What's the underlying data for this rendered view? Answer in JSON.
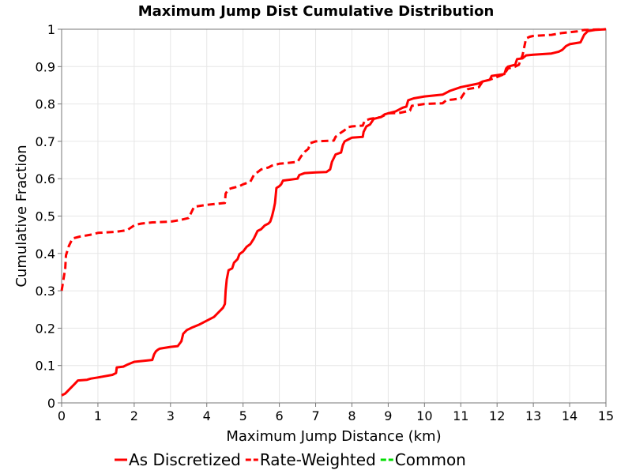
{
  "chart_data": {
    "type": "line",
    "title": "Maximum Jump Dist Cumulative Distribution",
    "xlabel": "Maximum Jump Distance (km)",
    "ylabel": "Cumulative Fraction",
    "xlim": [
      0,
      15
    ],
    "ylim": [
      0,
      1
    ],
    "x_ticks": [
      "0",
      "1",
      "2",
      "3",
      "4",
      "5",
      "6",
      "7",
      "8",
      "9",
      "10",
      "11",
      "12",
      "13",
      "14",
      "15"
    ],
    "y_ticks": [
      "0",
      "0.1",
      "0.2",
      "0.3",
      "0.4",
      "0.5",
      "0.6",
      "0.7",
      "0.8",
      "0.9",
      "1"
    ],
    "grid": true,
    "legend_position": "bottom",
    "series": [
      {
        "name": "As Discretized",
        "color": "#ff0000",
        "dash": "solid",
        "points": [
          [
            0,
            0.02
          ],
          [
            0.1,
            0.025
          ],
          [
            0.2,
            0.035
          ],
          [
            0.35,
            0.05
          ],
          [
            0.45,
            0.06
          ],
          [
            0.7,
            0.062
          ],
          [
            0.8,
            0.065
          ],
          [
            1.0,
            0.068
          ],
          [
            1.4,
            0.075
          ],
          [
            1.5,
            0.08
          ],
          [
            1.52,
            0.095
          ],
          [
            1.7,
            0.097
          ],
          [
            1.8,
            0.102
          ],
          [
            2.0,
            0.11
          ],
          [
            2.5,
            0.115
          ],
          [
            2.55,
            0.13
          ],
          [
            2.6,
            0.138
          ],
          [
            2.65,
            0.142
          ],
          [
            2.7,
            0.145
          ],
          [
            3.0,
            0.15
          ],
          [
            3.2,
            0.152
          ],
          [
            3.3,
            0.165
          ],
          [
            3.35,
            0.185
          ],
          [
            3.45,
            0.195
          ],
          [
            3.6,
            0.202
          ],
          [
            3.8,
            0.21
          ],
          [
            4.0,
            0.22
          ],
          [
            4.2,
            0.23
          ],
          [
            4.3,
            0.24
          ],
          [
            4.4,
            0.25
          ],
          [
            4.45,
            0.255
          ],
          [
            4.5,
            0.265
          ],
          [
            4.52,
            0.3
          ],
          [
            4.55,
            0.33
          ],
          [
            4.6,
            0.355
          ],
          [
            4.7,
            0.36
          ],
          [
            4.75,
            0.375
          ],
          [
            4.85,
            0.385
          ],
          [
            4.9,
            0.398
          ],
          [
            5.0,
            0.405
          ],
          [
            5.1,
            0.418
          ],
          [
            5.2,
            0.425
          ],
          [
            5.3,
            0.44
          ],
          [
            5.4,
            0.46
          ],
          [
            5.5,
            0.465
          ],
          [
            5.6,
            0.475
          ],
          [
            5.7,
            0.48
          ],
          [
            5.75,
            0.485
          ],
          [
            5.8,
            0.5
          ],
          [
            5.85,
            0.52
          ],
          [
            5.88,
            0.535
          ],
          [
            5.92,
            0.575
          ],
          [
            6.0,
            0.58
          ],
          [
            6.05,
            0.585
          ],
          [
            6.1,
            0.595
          ],
          [
            6.5,
            0.6
          ],
          [
            6.55,
            0.61
          ],
          [
            6.7,
            0.615
          ],
          [
            7.0,
            0.617
          ],
          [
            7.3,
            0.618
          ],
          [
            7.4,
            0.625
          ],
          [
            7.45,
            0.645
          ],
          [
            7.55,
            0.665
          ],
          [
            7.7,
            0.67
          ],
          [
            7.75,
            0.69
          ],
          [
            7.8,
            0.7
          ],
          [
            7.9,
            0.705
          ],
          [
            8.0,
            0.71
          ],
          [
            8.3,
            0.712
          ],
          [
            8.32,
            0.725
          ],
          [
            8.4,
            0.74
          ],
          [
            8.5,
            0.745
          ],
          [
            8.6,
            0.76
          ],
          [
            8.8,
            0.765
          ],
          [
            8.9,
            0.772
          ],
          [
            9.0,
            0.775
          ],
          [
            9.2,
            0.78
          ],
          [
            9.3,
            0.785
          ],
          [
            9.4,
            0.79
          ],
          [
            9.5,
            0.793
          ],
          [
            9.55,
            0.81
          ],
          [
            9.7,
            0.815
          ],
          [
            10.0,
            0.82
          ],
          [
            10.5,
            0.825
          ],
          [
            10.7,
            0.835
          ],
          [
            11.0,
            0.845
          ],
          [
            11.5,
            0.855
          ],
          [
            11.6,
            0.86
          ],
          [
            11.8,
            0.865
          ],
          [
            11.85,
            0.875
          ],
          [
            12.2,
            0.88
          ],
          [
            12.25,
            0.895
          ],
          [
            12.3,
            0.9
          ],
          [
            12.5,
            0.905
          ],
          [
            12.55,
            0.92
          ],
          [
            12.7,
            0.922
          ],
          [
            12.8,
            0.93
          ],
          [
            13.0,
            0.932
          ],
          [
            13.5,
            0.935
          ],
          [
            13.7,
            0.94
          ],
          [
            13.8,
            0.945
          ],
          [
            13.9,
            0.955
          ],
          [
            14.0,
            0.96
          ],
          [
            14.3,
            0.965
          ],
          [
            14.4,
            0.985
          ],
          [
            14.5,
            0.995
          ],
          [
            14.7,
            0.998
          ],
          [
            15.0,
            1.0
          ]
        ]
      },
      {
        "name": "Rate-Weighted",
        "color": "#ff0000",
        "dash": "dashed",
        "points": [
          [
            0,
            0.3
          ],
          [
            0.05,
            0.33
          ],
          [
            0.1,
            0.36
          ],
          [
            0.12,
            0.395
          ],
          [
            0.2,
            0.42
          ],
          [
            0.3,
            0.44
          ],
          [
            0.5,
            0.445
          ],
          [
            0.8,
            0.45
          ],
          [
            1.0,
            0.455
          ],
          [
            1.5,
            0.458
          ],
          [
            1.8,
            0.462
          ],
          [
            2.0,
            0.475
          ],
          [
            2.1,
            0.478
          ],
          [
            2.2,
            0.48
          ],
          [
            2.5,
            0.483
          ],
          [
            3.0,
            0.485
          ],
          [
            3.3,
            0.49
          ],
          [
            3.5,
            0.495
          ],
          [
            3.55,
            0.505
          ],
          [
            3.65,
            0.525
          ],
          [
            4.0,
            0.53
          ],
          [
            4.5,
            0.535
          ],
          [
            4.52,
            0.56
          ],
          [
            4.6,
            0.572
          ],
          [
            4.7,
            0.575
          ],
          [
            4.9,
            0.58
          ],
          [
            5.0,
            0.585
          ],
          [
            5.2,
            0.592
          ],
          [
            5.3,
            0.61
          ],
          [
            5.5,
            0.625
          ],
          [
            5.7,
            0.63
          ],
          [
            5.8,
            0.635
          ],
          [
            6.0,
            0.64
          ],
          [
            6.5,
            0.645
          ],
          [
            6.6,
            0.66
          ],
          [
            6.7,
            0.672
          ],
          [
            6.8,
            0.68
          ],
          [
            6.85,
            0.695
          ],
          [
            7.0,
            0.7
          ],
          [
            7.5,
            0.702
          ],
          [
            7.55,
            0.712
          ],
          [
            7.65,
            0.72
          ],
          [
            7.8,
            0.73
          ],
          [
            7.9,
            0.738
          ],
          [
            8.0,
            0.74
          ],
          [
            8.3,
            0.742
          ],
          [
            8.35,
            0.755
          ],
          [
            8.5,
            0.76
          ],
          [
            8.8,
            0.765
          ],
          [
            9.0,
            0.775
          ],
          [
            9.3,
            0.776
          ],
          [
            9.6,
            0.782
          ],
          [
            9.65,
            0.795
          ],
          [
            10.0,
            0.8
          ],
          [
            10.5,
            0.802
          ],
          [
            10.6,
            0.81
          ],
          [
            10.8,
            0.812
          ],
          [
            11.0,
            0.815
          ],
          [
            11.1,
            0.83
          ],
          [
            11.2,
            0.84
          ],
          [
            11.5,
            0.845
          ],
          [
            11.6,
            0.86
          ],
          [
            11.8,
            0.865
          ],
          [
            12.0,
            0.872
          ],
          [
            12.2,
            0.88
          ],
          [
            12.3,
            0.895
          ],
          [
            12.5,
            0.9
          ],
          [
            12.6,
            0.905
          ],
          [
            12.7,
            0.93
          ],
          [
            12.8,
            0.975
          ],
          [
            12.9,
            0.98
          ],
          [
            13.0,
            0.982
          ],
          [
            13.5,
            0.985
          ],
          [
            13.8,
            0.99
          ],
          [
            14.0,
            0.992
          ],
          [
            14.2,
            0.994
          ],
          [
            14.4,
            0.998
          ],
          [
            15.0,
            1.0
          ]
        ]
      },
      {
        "name": "Common",
        "color": "#00dd00",
        "dash": "dashed",
        "points": []
      }
    ]
  }
}
